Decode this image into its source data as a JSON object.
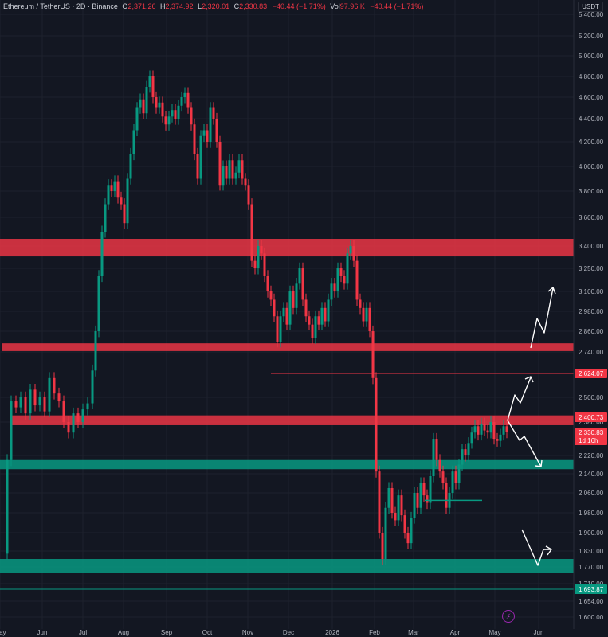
{
  "header": {
    "symbol": "Ethereum / TetherUS · 2D · Binance",
    "open_label": "O",
    "open": "2,371.26",
    "high_label": "H",
    "high": "2,374.92",
    "low_label": "L",
    "low": "2,320.01",
    "close_label": "C",
    "close": "2,330.83",
    "change": "−40.44 (−1.71%)",
    "vol_label": "Vol",
    "volume": "97.96 K",
    "vol_change": "−40.44 (−1.71%)"
  },
  "price_axis": {
    "unit": "USDT",
    "ticks": [
      "5,400.00",
      "5,200.00",
      "5,000.00",
      "4,800.00",
      "4,600.00",
      "4,400.00",
      "4,200.00",
      "4,000.00",
      "3,800.00",
      "3,600.00",
      "3,400.00",
      "3,250.00",
      "3,100.00",
      "2,980.00",
      "2,860.00",
      "2,740.00",
      "2,500.00",
      "2,380.00",
      "2,220.00",
      "2,140.00",
      "2,060.00",
      "1,980.00",
      "1,900.00",
      "1,830.00",
      "1,770.00",
      "1,710.00",
      "1,654.00",
      "1,600.00"
    ]
  },
  "time_axis": {
    "labels": [
      "May",
      "Jun",
      "Jul",
      "Aug",
      "Sep",
      "Oct",
      "Nov",
      "Dec",
      "2026",
      "Feb",
      "Mar",
      "Apr",
      "May",
      "Jun"
    ]
  },
  "markers": [
    {
      "label": "2,624.07",
      "value": 2624.07,
      "color": "#f23645"
    },
    {
      "label": "2,400.73",
      "value": 2400.73,
      "color": "#f23645"
    },
    {
      "label": "2,330.83",
      "sub": "1d 16h",
      "value": 2330.83,
      "color": "#f23645"
    },
    {
      "label": "1,693.87",
      "value": 1693.87,
      "color": "#089981"
    }
  ],
  "zones": [
    {
      "kind": "resistance",
      "from": 3330,
      "to": 3450,
      "color": "#f23645"
    },
    {
      "kind": "resistance",
      "from": 2745,
      "to": 2790,
      "color": "#f23645"
    },
    {
      "kind": "resistance",
      "from": 2365,
      "to": 2410,
      "color": "#f23645"
    },
    {
      "kind": "support",
      "from": 2160,
      "to": 2200,
      "color": "#089981"
    },
    {
      "kind": "support",
      "from": 1750,
      "to": 1800,
      "color": "#089981"
    }
  ],
  "colors": {
    "bull": "#089981",
    "bear": "#f23645",
    "background": "#131722",
    "grid": "#1e222d"
  }
}
